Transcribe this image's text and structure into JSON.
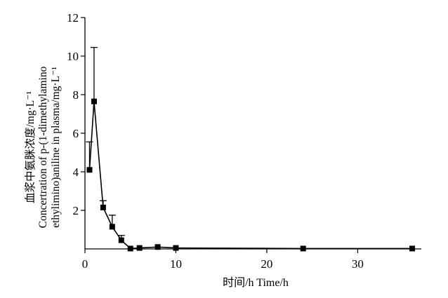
{
  "chart_data": {
    "type": "line",
    "xlabel": "时间/h  Time/h",
    "ylabel_lines": [
      "血浆中氨脒浓度/mg·L⁻¹",
      "Concertration of  p-(1-dimethylamino",
      "ethylimino)aniline in plasma/mg·L⁻¹"
    ],
    "xlim": [
      0,
      37
    ],
    "ylim": [
      0,
      12
    ],
    "x_ticks": [
      0,
      10,
      20,
      30
    ],
    "y_ticks": [
      2,
      4,
      6,
      8,
      10,
      12
    ],
    "grid": false,
    "series": [
      {
        "x": [
          0.5,
          1,
          2,
          3,
          4,
          5,
          6,
          8,
          10,
          24,
          36
        ],
        "y": [
          4.1,
          7.65,
          2.15,
          1.15,
          0.45,
          0.02,
          0.05,
          0.1,
          0.05,
          0.02,
          0.02
        ],
        "error_upper": [
          5.55,
          10.45,
          2.5,
          1.75,
          0.7,
          0.04,
          0.1,
          0.15,
          0.1,
          0.04,
          0.04
        ]
      }
    ],
    "colors": {
      "line": "#000000",
      "marker": "#000000"
    }
  }
}
